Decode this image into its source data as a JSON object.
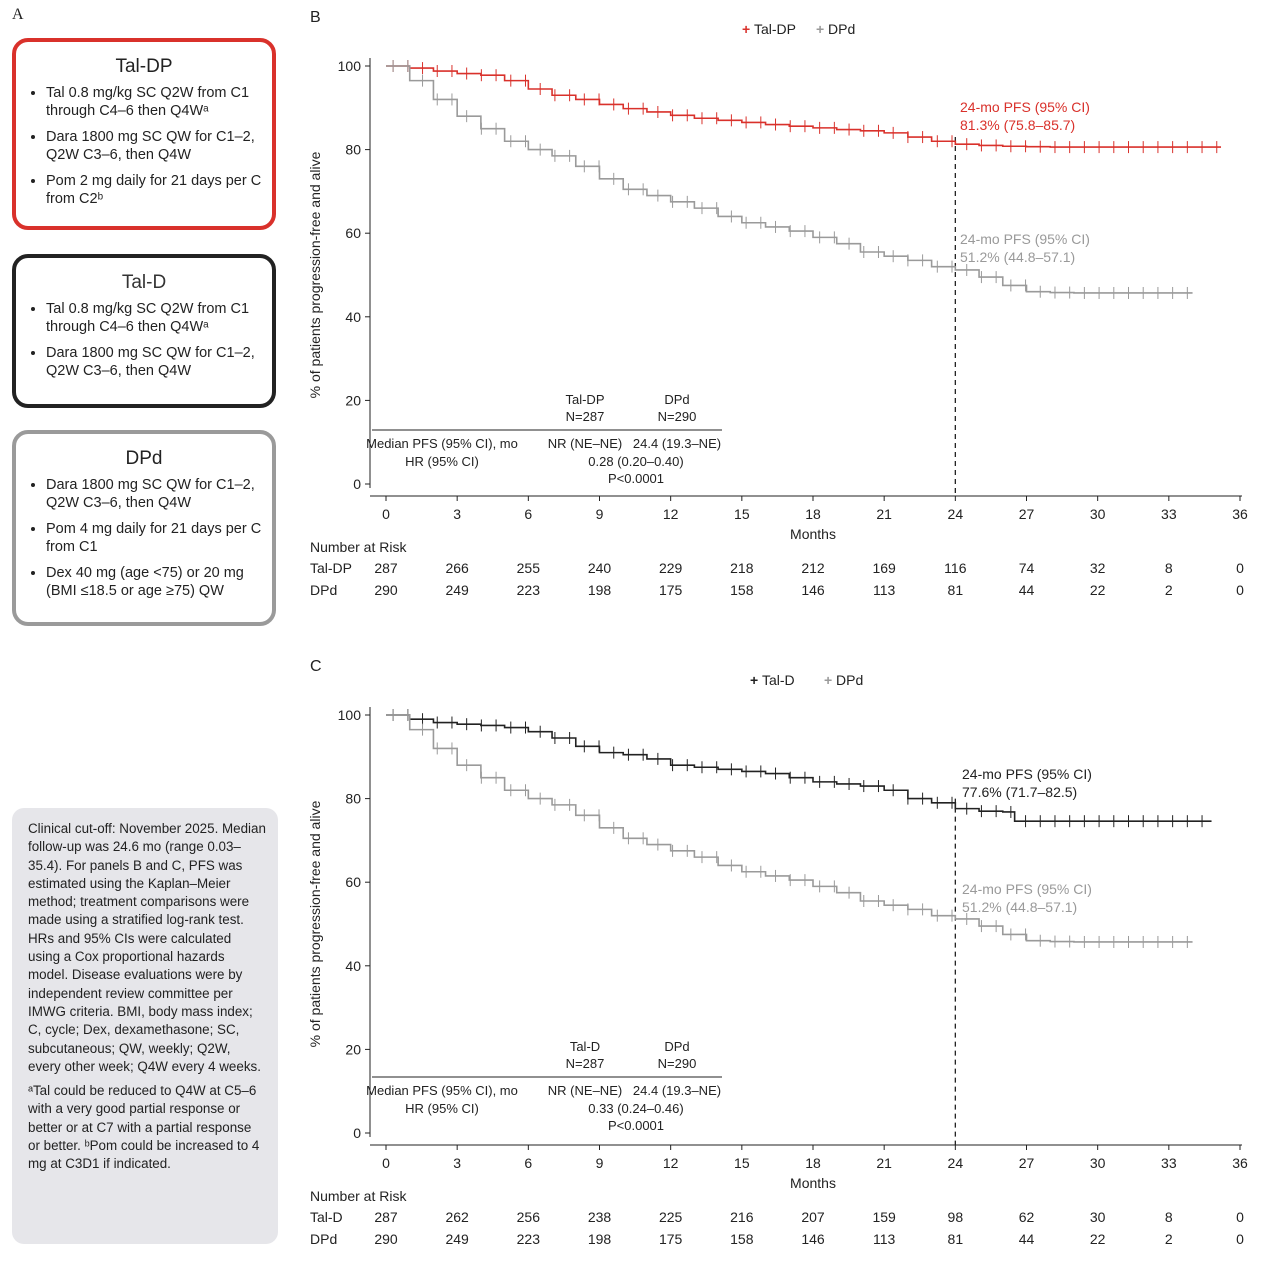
{
  "panelA": {
    "letter": "A",
    "arms": [
      {
        "title": "Tal-DP",
        "items": [
          "Tal 0.8 mg/kg SC Q2W from C1 through C4–6 then Q4Wᵃ",
          "Dara 1800 mg SC QW for C1–2, Q2W C3–6, then Q4W",
          "Pom 2 mg daily for 21 days per C from C2ᵇ"
        ]
      },
      {
        "title": "Tal-D",
        "items": [
          "Tal 0.8 mg/kg SC Q2W from C1 through C4–6 then Q4Wᵃ",
          "Dara 1800 mg SC QW for C1–2, Q2W C3–6, then Q4W"
        ]
      },
      {
        "title": "DPd",
        "items": [
          "Dara 1800 mg SC QW for C1–2, Q2W C3–6, then Q4W",
          "Pom 4 mg daily for 21 days per C from C1",
          "Dex 40 mg (age <75) or 20 mg (BMI ≤18.5 or age ≥75) QW"
        ]
      }
    ],
    "colors": {
      "tal_dp": "#d9312b",
      "tal_d": "#222222",
      "dpd": "#9a9a9a"
    }
  },
  "footnote": {
    "main": "Clinical cut-off: November 2025. Median follow-up was 24.6 mo (range 0.03–35.4). For panels B and C, PFS was estimated using the Kaplan–Meier method; treatment comparisons were made using a stratified log-rank test. HRs and 95% CIs were calculated using a Cox proportional hazards model. Disease evaluations were by independent review committee per IMWG criteria. BMI, body mass index; C, cycle; Dex, dexamethasone; SC, subcutaneous; QW, weekly; Q2W, every other week; Q4W every 4 weeks.",
    "notes": "ᵃTal could be reduced to Q4W at C5–6 with a very good partial response or better or at C7 with a partial response or better. ᵇPom could be increased to 4 mg at C3D1 if indicated."
  },
  "chart_data": [
    {
      "panel": "B",
      "type": "line",
      "subtype": "kaplan-meier",
      "xlabel": "Months",
      "ylabel": "% of patients progression-free and alive",
      "xlim": [
        0,
        36
      ],
      "ylim": [
        0,
        100
      ],
      "xticks": [
        "0",
        "3",
        "6",
        "9",
        "12",
        "15",
        "18",
        "21",
        "24",
        "27",
        "30",
        "33",
        "36"
      ],
      "yticks": [
        "0",
        "20",
        "40",
        "60",
        "80",
        "100"
      ],
      "legend_position": "top-center",
      "reference_line_x": 24,
      "series": [
        {
          "name": "Tal-DP",
          "color": "#d9312b",
          "x": [
            0,
            1,
            2,
            3,
            4,
            5,
            6,
            7,
            8,
            9,
            10,
            11,
            12,
            13,
            14,
            15,
            16,
            17,
            18,
            19,
            20,
            21,
            22,
            23,
            24,
            25,
            26,
            27,
            28,
            29,
            30,
            31,
            32,
            33,
            34,
            35.2
          ],
          "y": [
            100,
            99.5,
            98.8,
            98.2,
            97.8,
            96.5,
            94.5,
            93,
            92,
            90.8,
            89.8,
            89,
            88.2,
            87.5,
            87,
            86.5,
            86,
            85.6,
            85.2,
            84.8,
            84.5,
            84,
            83,
            82,
            81.3,
            81,
            80.8,
            80.7,
            80.6,
            80.6,
            80.6,
            80.6,
            80.6,
            80.6,
            80.6,
            80.6
          ]
        },
        {
          "name": "DPd",
          "color": "#9a9a9a",
          "x": [
            0,
            1,
            2,
            3,
            4,
            5,
            6,
            7,
            8,
            9,
            10,
            11,
            12,
            13,
            14,
            15,
            16,
            17,
            18,
            19,
            20,
            21,
            22,
            23,
            24,
            25,
            26,
            27,
            28,
            29,
            30,
            31,
            32,
            33,
            34
          ],
          "y": [
            100,
            96.5,
            92,
            88,
            85,
            82,
            80,
            78.5,
            76,
            73,
            70.5,
            69,
            67.5,
            66,
            64,
            62.5,
            61.5,
            60.5,
            59,
            57.5,
            55.5,
            54.5,
            53.5,
            52,
            51.2,
            49.5,
            47.5,
            46,
            45.8,
            45.7,
            45.7,
            45.7,
            45.7,
            45.7,
            45.7
          ]
        }
      ],
      "annotations": [
        {
          "series": "Tal-DP",
          "lines": [
            "24-mo PFS (95% CI)",
            "81.3% (75.8–85.7)"
          ]
        },
        {
          "series": "DPd",
          "lines": [
            "24-mo PFS (95% CI)",
            "51.2% (44.8–57.1)"
          ]
        }
      ],
      "stats_table": {
        "headers": [
          "Tal-DP",
          "DPd"
        ],
        "ns": [
          "N=287",
          "N=290"
        ],
        "rows": [
          {
            "label": "Median PFS (95% CI), mo",
            "values": [
              "NR (NE–NE)",
              "24.4 (19.3–NE)"
            ]
          },
          {
            "label": "HR (95% CI)",
            "value": "0.28 (0.20–0.40)"
          },
          {
            "label": "",
            "value": "P<0.0001"
          }
        ]
      },
      "risk_table": {
        "title": "Number at Risk",
        "rows": [
          {
            "label": "Tal-DP",
            "values": [
              "287",
              "266",
              "255",
              "240",
              "229",
              "218",
              "212",
              "169",
              "116",
              "74",
              "32",
              "8",
              "0"
            ]
          },
          {
            "label": "DPd",
            "values": [
              "290",
              "249",
              "223",
              "198",
              "175",
              "158",
              "146",
              "113",
              "81",
              "44",
              "22",
              "2",
              "0"
            ]
          }
        ]
      }
    },
    {
      "panel": "C",
      "type": "line",
      "subtype": "kaplan-meier",
      "xlabel": "Months",
      "ylabel": "% of patients progression-free and alive",
      "xlim": [
        0,
        36
      ],
      "ylim": [
        0,
        100
      ],
      "xticks": [
        "0",
        "3",
        "6",
        "9",
        "12",
        "15",
        "18",
        "21",
        "24",
        "27",
        "30",
        "33",
        "36"
      ],
      "yticks": [
        "0",
        "20",
        "40",
        "60",
        "80",
        "100"
      ],
      "legend_position": "top-center",
      "reference_line_x": 24,
      "series": [
        {
          "name": "Tal-D",
          "color": "#222222",
          "x": [
            0,
            1,
            2,
            3,
            4,
            5,
            6,
            7,
            8,
            9,
            10,
            11,
            12,
            13,
            14,
            15,
            16,
            17,
            18,
            19,
            20,
            21,
            22,
            23,
            24,
            25,
            26,
            26.5,
            27,
            28,
            29,
            30,
            31,
            32,
            33,
            34,
            34.8
          ],
          "y": [
            100,
            99,
            98.2,
            97.8,
            97.5,
            97,
            96,
            94.5,
            92.5,
            91,
            90.5,
            89.5,
            88,
            87.5,
            87,
            86.5,
            86,
            85,
            84,
            83.5,
            83,
            82,
            80,
            79,
            77.6,
            77,
            76.8,
            74.6,
            74.6,
            74.6,
            74.6,
            74.6,
            74.6,
            74.6,
            74.6,
            74.6,
            74.6
          ]
        },
        {
          "name": "DPd",
          "color": "#9a9a9a",
          "x": [
            0,
            1,
            2,
            3,
            4,
            5,
            6,
            7,
            8,
            9,
            10,
            11,
            12,
            13,
            14,
            15,
            16,
            17,
            18,
            19,
            20,
            21,
            22,
            23,
            24,
            25,
            26,
            27,
            28,
            29,
            30,
            31,
            32,
            33,
            34
          ],
          "y": [
            100,
            96.5,
            92,
            88,
            85,
            82,
            80,
            78.5,
            76,
            73,
            70.5,
            69,
            67.5,
            66,
            64,
            62.5,
            61.5,
            60.5,
            59,
            57.5,
            55.5,
            54.5,
            53.5,
            52,
            51.2,
            49.5,
            47.5,
            46,
            45.8,
            45.7,
            45.7,
            45.7,
            45.7,
            45.7,
            45.7
          ]
        }
      ],
      "annotations": [
        {
          "series": "Tal-D",
          "lines": [
            "24-mo PFS (95% CI)",
            "77.6% (71.7–82.5)"
          ]
        },
        {
          "series": "DPd",
          "lines": [
            "24-mo PFS (95% CI)",
            "51.2% (44.8–57.1)"
          ]
        }
      ],
      "stats_table": {
        "headers": [
          "Tal-D",
          "DPd"
        ],
        "ns": [
          "N=287",
          "N=290"
        ],
        "rows": [
          {
            "label": "Median PFS (95% CI), mo",
            "values": [
              "NR (NE–NE)",
              "24.4 (19.3–NE)"
            ]
          },
          {
            "label": "HR (95% CI)",
            "value": "0.33 (0.24–0.46)"
          },
          {
            "label": "",
            "value": "P<0.0001"
          }
        ]
      },
      "risk_table": {
        "title": "Number at Risk",
        "rows": [
          {
            "label": "Tal-D",
            "values": [
              "287",
              "262",
              "256",
              "238",
              "225",
              "216",
              "207",
              "159",
              "98",
              "62",
              "30",
              "8",
              "0"
            ]
          },
          {
            "label": "DPd",
            "values": [
              "290",
              "249",
              "223",
              "198",
              "175",
              "158",
              "146",
              "113",
              "81",
              "44",
              "22",
              "2",
              "0"
            ]
          }
        ]
      }
    }
  ]
}
